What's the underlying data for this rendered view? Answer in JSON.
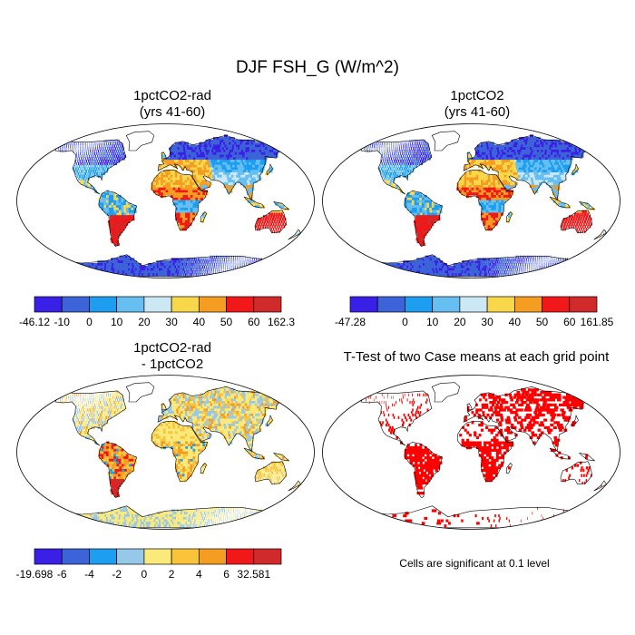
{
  "figure": {
    "title": "DJF FSH_G (W/m^2)"
  },
  "panels": [
    {
      "id": "tl",
      "title_line1": "1pctCO2-rad",
      "title_line2": "(yrs 41-60)",
      "palette": "abs"
    },
    {
      "id": "tr",
      "title_line1": "1pctCO2",
      "title_line2": "(yrs 41-60)",
      "palette": "abs"
    },
    {
      "id": "bl",
      "title_line1": "1pctCO2-rad",
      "title_line2": "- 1pctCO2",
      "palette": "diff"
    },
    {
      "id": "br",
      "title_line1": "T-Test of two Case means at each grid point",
      "title_line2": "",
      "palette": "ttest"
    }
  ],
  "colorbars": [
    {
      "id": "cb1",
      "colors": [
        "#3a1fe6",
        "#3d63d8",
        "#1d9ef0",
        "#66bff0",
        "#cce8f4",
        "#f9d74a",
        "#f49d22",
        "#f01818",
        "#d02a2a"
      ],
      "labels": [
        "-46.12",
        "-10",
        "0",
        "10",
        "20",
        "30",
        "40",
        "50",
        "60",
        "162.3"
      ]
    },
    {
      "id": "cb2",
      "colors": [
        "#3a1fe6",
        "#3d63d8",
        "#1d9ef0",
        "#66bff0",
        "#cce8f4",
        "#f9d74a",
        "#f49d22",
        "#f01818",
        "#d02a2a"
      ],
      "labels": [
        "-47.28",
        "",
        "0",
        "10",
        "20",
        "30",
        "40",
        "50",
        "60",
        "161.85"
      ]
    },
    {
      "id": "cb3",
      "colors": [
        "#3a1fe6",
        "#3d63d8",
        "#1d9ef0",
        "#96c8ea",
        "#fbe97a",
        "#f9c33a",
        "#f49d22",
        "#f01818",
        "#d02a2a"
      ],
      "labels": [
        "-19.698",
        "-6",
        "-4",
        "-2",
        "0",
        "2",
        "4",
        "6",
        "32.581"
      ]
    }
  ],
  "significance_note": "Cells are significant at 0.1 level",
  "colors": {
    "land_outline": "#000000",
    "significant": "#ff0000"
  }
}
